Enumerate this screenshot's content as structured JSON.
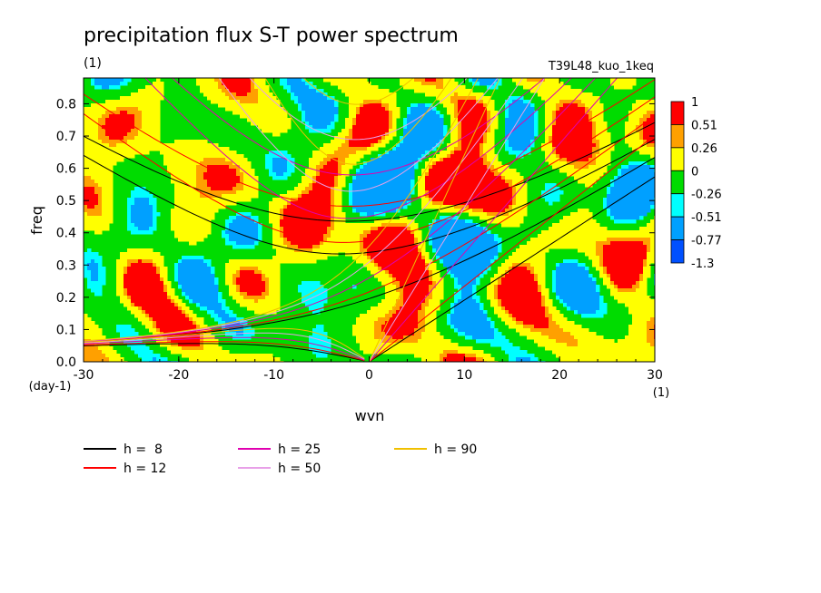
{
  "chart_data": {
    "type": "heatmap",
    "title": "precipitation flux S-T power spectrum",
    "subtitle": "(1)",
    "run_label": "T39L48_kuo_1keq",
    "xlabel": "wvn",
    "xunit": "(1)",
    "ylabel": "freq",
    "yunit": "(day-1)",
    "xlim": [
      -30,
      30
    ],
    "ylim": [
      0,
      0.88
    ],
    "xticks": [
      -30,
      -20,
      -10,
      0,
      10,
      20,
      30
    ],
    "yticks": [
      0.0,
      0.1,
      0.2,
      0.3,
      0.4,
      0.5,
      0.6,
      0.7,
      0.8
    ],
    "ytick_labels": [
      "0.0",
      "0.1",
      "0.2",
      "0.3",
      "0.4",
      "0.5",
      "0.6",
      "0.7",
      "0.8"
    ],
    "colorbar": {
      "labels": [
        "1",
        "0.51",
        "0.26",
        "0",
        "-0.26",
        "-0.51",
        "-0.77",
        "-1.3"
      ],
      "colors": [
        "#ff0000",
        "#ffa000",
        "#ffff00",
        "#00dc00",
        "#00ffff",
        "#00a0ff",
        "#0050ff"
      ]
    },
    "field_note": "random smooth noise field mostly in classes 0 to 0.26 and -0.26 to 0",
    "dispersion_curves": [
      {
        "label": "h =  8",
        "h": 8,
        "color": "#000000"
      },
      {
        "label": "h = 12",
        "h": 12,
        "color": "#ff0000"
      },
      {
        "label": "h = 25",
        "h": 25,
        "color": "#e000b0"
      },
      {
        "label": "h = 50",
        "h": 50,
        "color": "#e8a0e8"
      },
      {
        "label": "h = 90",
        "h": 90,
        "color": "#f0c000"
      }
    ]
  }
}
